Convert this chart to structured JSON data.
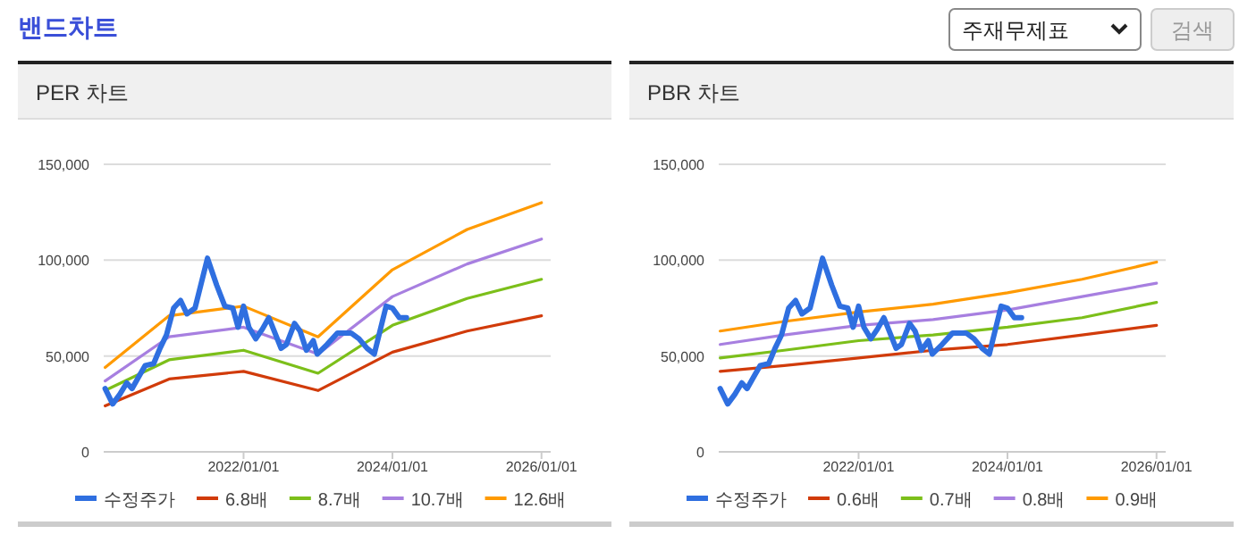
{
  "chart_data": [
    {
      "type": "line",
      "title": "PER 차트",
      "annotations": [
        "밴드차트",
        "주재무제표",
        "검색"
      ],
      "xlim": [
        "2020-02-15",
        "2026-02-15"
      ],
      "xticks": [
        {
          "value": "2022-01-01",
          "label": "2022/01/01"
        },
        {
          "value": "2024-01-01",
          "label": "2024/01/01"
        },
        {
          "value": "2026-01-01",
          "label": "2026/01/01"
        }
      ],
      "ylim": [
        0,
        150000
      ],
      "yticks": [
        0,
        {
          "value": 50000,
          "label": "50,000"
        },
        {
          "value": 100000,
          "label": "100,000"
        },
        {
          "value": 150000,
          "label": "150,000"
        }
      ],
      "grid": "y",
      "legend": "bottom",
      "series": [
        {
          "name": "수정주가",
          "color": "#2f6fe0",
          "x": [
            "2020-02-22",
            "2020-03-30",
            "2020-05-04",
            "2020-06-07",
            "2020-07-03",
            "2020-08-04",
            "2020-09-05",
            "2020-10-17",
            "2020-11-17",
            "2020-12-19",
            "2021-01-23",
            "2021-02-26",
            "2021-03-29",
            "2021-05-08",
            "2021-07-08",
            "2021-08-22",
            "2021-10-01",
            "2021-11-09",
            "2021-12-05",
            "2022-01-01",
            "2022-01-27",
            "2022-03-02",
            "2022-04-03",
            "2022-05-05",
            "2022-07-04",
            "2022-07-30",
            "2022-09-08",
            "2022-10-05",
            "2022-11-05",
            "2022-12-09",
            "2022-12-28",
            "2023-02-14",
            "2023-04-07",
            "2023-06-12",
            "2023-07-21",
            "2023-08-30",
            "2023-10-04",
            "2023-12-01",
            "2024-01-01",
            "2024-02-04",
            "2024-03-10"
          ],
          "values": [
            33000,
            25000,
            30000,
            36000,
            33000,
            39000,
            45000,
            46000,
            54000,
            61000,
            75000,
            79000,
            72000,
            75000,
            101000,
            87000,
            76000,
            75000,
            65000,
            76000,
            65000,
            59000,
            64000,
            70000,
            54000,
            56000,
            67000,
            63000,
            53000,
            58000,
            51000,
            56000,
            62000,
            62000,
            59000,
            54000,
            51000,
            76000,
            75000,
            70000,
            70000
          ]
        },
        {
          "name": "6.8배",
          "color": "#d13b0a",
          "x": [
            "2020-02-22",
            "2021-01-01",
            "2022-01-01",
            "2023-01-01",
            "2024-01-01",
            "2025-01-01",
            "2026-01-01"
          ],
          "values": [
            24000,
            38000,
            42000,
            32000,
            52000,
            63000,
            71000
          ]
        },
        {
          "name": "8.7배",
          "color": "#7cbf1a",
          "x": [
            "2020-02-22",
            "2021-01-01",
            "2022-01-01",
            "2023-01-01",
            "2024-01-01",
            "2025-01-01",
            "2026-01-01"
          ],
          "values": [
            32000,
            48000,
            53000,
            41000,
            66000,
            80000,
            90000
          ]
        },
        {
          "name": "10.7배",
          "color": "#a77fe0",
          "x": [
            "2020-02-22",
            "2021-01-01",
            "2022-01-01",
            "2023-01-01",
            "2024-01-01",
            "2025-01-01",
            "2026-01-01"
          ],
          "values": [
            37000,
            60000,
            65000,
            51000,
            81000,
            98000,
            111000
          ]
        },
        {
          "name": "12.6배",
          "color": "#ff9a00",
          "x": [
            "2020-02-22",
            "2021-01-01",
            "2022-01-01",
            "2023-01-01",
            "2024-01-01",
            "2025-01-01",
            "2026-01-01"
          ],
          "values": [
            44000,
            71000,
            76000,
            60000,
            95000,
            116000,
            130000
          ]
        }
      ]
    },
    {
      "type": "line",
      "title": "PBR 차트",
      "xlim": [
        "2020-02-15",
        "2026-02-15"
      ],
      "xticks": [
        {
          "value": "2022-01-01",
          "label": "2022/01/01"
        },
        {
          "value": "2024-01-01",
          "label": "2024/01/01"
        },
        {
          "value": "2026-01-01",
          "label": "2026/01/01"
        }
      ],
      "ylim": [
        0,
        150000
      ],
      "yticks": [
        0,
        {
          "value": 50000,
          "label": "50,000"
        },
        {
          "value": 100000,
          "label": "100,000"
        },
        {
          "value": 150000,
          "label": "150,000"
        }
      ],
      "grid": "y",
      "legend": "bottom",
      "series": [
        {
          "name": "수정주가",
          "color": "#2f6fe0",
          "x": [
            "2020-02-22",
            "2020-03-30",
            "2020-05-04",
            "2020-06-07",
            "2020-07-03",
            "2020-08-04",
            "2020-09-05",
            "2020-10-17",
            "2020-11-17",
            "2020-12-19",
            "2021-01-23",
            "2021-02-26",
            "2021-03-29",
            "2021-05-08",
            "2021-07-08",
            "2021-08-22",
            "2021-10-01",
            "2021-11-09",
            "2021-12-05",
            "2022-01-01",
            "2022-01-27",
            "2022-03-02",
            "2022-04-03",
            "2022-05-05",
            "2022-07-04",
            "2022-07-30",
            "2022-09-08",
            "2022-10-05",
            "2022-11-05",
            "2022-12-09",
            "2022-12-28",
            "2023-02-14",
            "2023-04-07",
            "2023-06-12",
            "2023-07-21",
            "2023-08-30",
            "2023-10-04",
            "2023-12-01",
            "2024-01-01",
            "2024-02-04",
            "2024-03-10"
          ],
          "values": [
            33000,
            25000,
            30000,
            36000,
            33000,
            39000,
            45000,
            46000,
            54000,
            61000,
            75000,
            79000,
            72000,
            75000,
            101000,
            87000,
            76000,
            75000,
            65000,
            76000,
            65000,
            59000,
            64000,
            70000,
            54000,
            56000,
            67000,
            63000,
            53000,
            58000,
            51000,
            56000,
            62000,
            62000,
            59000,
            54000,
            51000,
            76000,
            75000,
            70000,
            70000
          ]
        },
        {
          "name": "0.6배",
          "color": "#d13b0a",
          "x": [
            "2020-02-22",
            "2021-01-01",
            "2022-01-01",
            "2023-01-01",
            "2024-01-01",
            "2025-01-01",
            "2026-01-01"
          ],
          "values": [
            42000,
            45000,
            49000,
            53000,
            56000,
            61000,
            66000
          ]
        },
        {
          "name": "0.7배",
          "color": "#7cbf1a",
          "x": [
            "2020-02-22",
            "2021-01-01",
            "2022-01-01",
            "2023-01-01",
            "2024-01-01",
            "2025-01-01",
            "2026-01-01"
          ],
          "values": [
            49000,
            53000,
            58000,
            61000,
            65000,
            70000,
            78000
          ]
        },
        {
          "name": "0.8배",
          "color": "#a77fe0",
          "x": [
            "2020-02-22",
            "2021-01-01",
            "2022-01-01",
            "2023-01-01",
            "2024-01-01",
            "2025-01-01",
            "2026-01-01"
          ],
          "values": [
            56000,
            61000,
            66000,
            69000,
            74000,
            81000,
            88000
          ]
        },
        {
          "name": "0.9배",
          "color": "#ff9a00",
          "x": [
            "2020-02-22",
            "2021-01-01",
            "2022-01-01",
            "2023-01-01",
            "2024-01-01",
            "2025-01-01",
            "2026-01-01"
          ],
          "values": [
            63000,
            68000,
            73000,
            77000,
            83000,
            90000,
            99000
          ]
        }
      ]
    }
  ]
}
